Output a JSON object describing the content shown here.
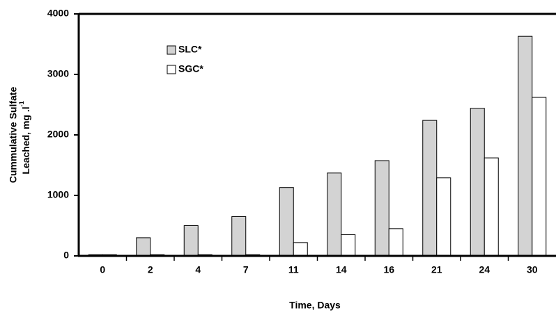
{
  "chart_data": {
    "type": "bar",
    "x_label": "Time, Days",
    "y_label": {
      "line1": "Cummulative Sulfate",
      "line2": "Leached, mg .l",
      "superscript": "-1"
    },
    "categories": [
      "0",
      "2",
      "4",
      "7",
      "11",
      "14",
      "16",
      "21",
      "24",
      "30"
    ],
    "series": [
      {
        "name": "SLC*",
        "color": "#d3d3d3",
        "values": [
          20,
          300,
          500,
          650,
          1130,
          1370,
          1575,
          2240,
          2440,
          3630
        ]
      },
      {
        "name": "SGC*",
        "color": "#ffffff",
        "values": [
          20,
          20,
          20,
          20,
          220,
          350,
          450,
          1290,
          1620,
          2620
        ]
      }
    ],
    "ylim": [
      0,
      4000
    ],
    "yticks": [
      0,
      1000,
      2000,
      3000,
      4000
    ],
    "grid": false
  }
}
